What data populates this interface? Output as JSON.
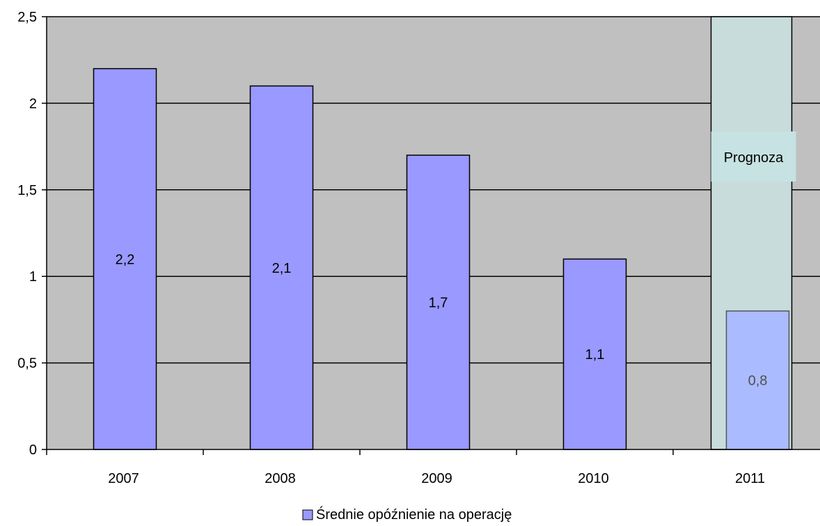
{
  "chart_data": {
    "type": "bar",
    "title": "",
    "xlabel": "",
    "ylabel": "",
    "categories": [
      "2007",
      "2008",
      "2009",
      "2010",
      "2011"
    ],
    "series": [
      {
        "name": "Średnie opóźnienie na operację",
        "values": [
          2.2,
          2.1,
          1.7,
          1.1,
          0.8
        ],
        "data_labels": [
          "2,2",
          "2,1",
          "1,7",
          "1,1",
          "0,8"
        ]
      }
    ],
    "ylim": [
      0,
      2.5
    ],
    "y_ticks": [
      0,
      0.5,
      1,
      1.5,
      2,
      2.5
    ],
    "y_tick_labels": [
      "0",
      "0,5",
      "1",
      "1,5",
      "2",
      "2,5"
    ],
    "grid": true,
    "legend": "bottom",
    "forecast": {
      "category": "2011",
      "label": "Prognoza",
      "upper_value": 2.5
    },
    "colors": {
      "plot_background": "#c0c0c0",
      "bar": "#9999ff",
      "forecast_bar": "#aabbff",
      "forecast_band": "#c8dcdc",
      "forecast_label_bg": "#c6e2e2",
      "forecast_value_text": "#505050"
    }
  }
}
